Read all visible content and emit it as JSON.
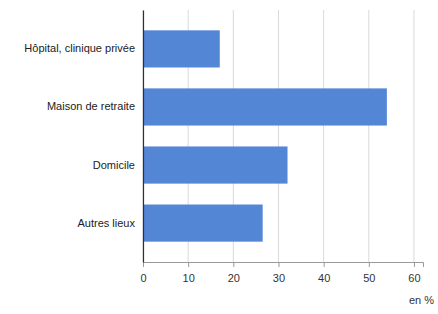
{
  "chart_data": {
    "type": "bar",
    "orientation": "horizontal",
    "categories": [
      "Hôpital, clinique privée",
      "Maison de retraite",
      "Domicile",
      "Autres lieux"
    ],
    "values": [
      17,
      54,
      32,
      26.5
    ],
    "color": "#5486d6",
    "xlim": [
      0,
      62
    ],
    "xticks": [
      0,
      10,
      20,
      30,
      40,
      50,
      60
    ],
    "x_label": "en %",
    "grid": true
  }
}
